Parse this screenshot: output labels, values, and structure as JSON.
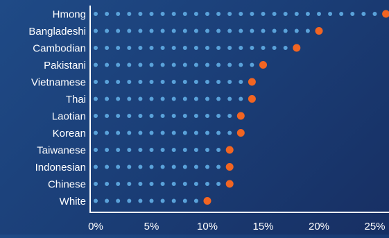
{
  "chart_data": {
    "type": "dot-plot",
    "categories": [
      "Hmong",
      "Bangladeshi",
      "Cambodian",
      "Pakistani",
      "Vietnamese",
      "Thai",
      "Laotian",
      "Korean",
      "Taiwanese",
      "Indonesian",
      "Chinese",
      "White"
    ],
    "values": [
      26,
      20,
      18,
      15,
      14,
      14,
      13,
      13,
      12,
      12,
      12,
      10
    ],
    "unit": "%",
    "xlim": [
      0,
      26
    ],
    "xticks": [
      0,
      5,
      10,
      15,
      20,
      25
    ],
    "xtick_labels": [
      "0%",
      "5%",
      "10%",
      "15%",
      "20%",
      "25%"
    ],
    "title": "",
    "xlabel": "",
    "ylabel": "",
    "grid": false,
    "legend": "none"
  },
  "colors": {
    "dot_trail": "#5aa2da",
    "endpoint": "#f26522",
    "axis": "#ffffff",
    "text": "#ffffff",
    "background_start": "#1f4a86",
    "background_end": "#172f63"
  }
}
